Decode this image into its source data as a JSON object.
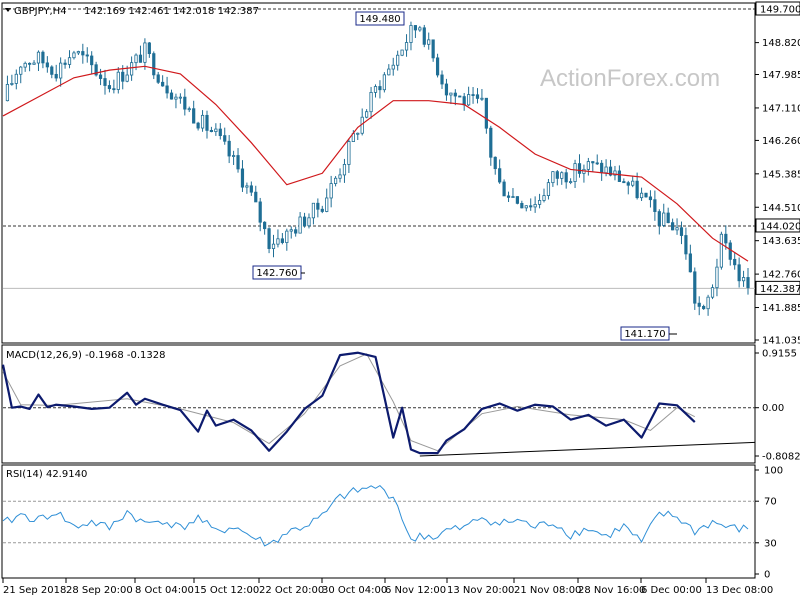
{
  "header": {
    "symbol": "GBPJPY,H4",
    "ohlc": "142.169 142.461 142.018 142.387"
  },
  "watermark": "ActionForex.com",
  "colors": {
    "candle": "#1f6e95",
    "ma": "#d0191c",
    "macd": "#0d1b6e",
    "signal": "#9a9a9a",
    "rsi": "#2f8fd6",
    "grid": "#999999",
    "trendline": "#000000"
  },
  "chart_data": [
    {
      "type": "candlestick",
      "panel": "price",
      "ylim": [
        141.035,
        149.7
      ],
      "y_ticks": [
        "149.700",
        "148.820",
        "147.985",
        "147.110",
        "146.260",
        "145.385",
        "144.510",
        "143.635",
        "142.760",
        "141.885",
        "141.035"
      ],
      "current_price": "142.387",
      "horizontal_lines": [
        {
          "value": 149.7,
          "label": "149.700"
        },
        {
          "value": 144.02,
          "label": "144.020"
        }
      ],
      "annotations": [
        {
          "text": "149.480",
          "value": 149.48
        },
        {
          "text": "142.760",
          "value": 142.76
        },
        {
          "text": "141.170",
          "value": 141.17
        }
      ],
      "x_ticks": [
        "21 Sep 2018",
        "28 Sep 20:00",
        "8 Oct 04:00",
        "15 Oct 12:00",
        "22 Oct 20:00",
        "30 Oct 04:00",
        "6 Nov 12:00",
        "13 Nov 20:00",
        "21 Nov 08:00",
        "28 Nov 16:00",
        "6 Dec 00:00",
        "13 Dec 08:00"
      ],
      "close_path": [
        [
          0,
          147.3
        ],
        [
          4,
          148.3
        ],
        [
          8,
          148.4
        ],
        [
          12,
          148.1
        ],
        [
          16,
          148.6
        ],
        [
          20,
          148.2
        ],
        [
          24,
          147.7
        ],
        [
          28,
          148.1
        ],
        [
          32,
          148.6
        ],
        [
          36,
          147.8
        ],
        [
          40,
          147.3
        ],
        [
          44,
          146.8
        ],
        [
          48,
          146.4
        ],
        [
          52,
          145.7
        ],
        [
          56,
          144.8
        ],
        [
          60,
          143.6
        ],
        [
          64,
          143.8
        ],
        [
          68,
          144.2
        ],
        [
          72,
          144.6
        ],
        [
          76,
          145.5
        ],
        [
          80,
          146.6
        ],
        [
          84,
          147.6
        ],
        [
          88,
          148.3
        ],
        [
          92,
          149.1
        ],
        [
          94,
          149.3
        ],
        [
          96,
          148.7
        ],
        [
          100,
          147.6
        ],
        [
          104,
          147.3
        ],
        [
          108,
          147.2
        ],
        [
          110,
          145.9
        ],
        [
          112,
          145.1
        ],
        [
          116,
          144.7
        ],
        [
          120,
          144.6
        ],
        [
          124,
          145.3
        ],
        [
          128,
          145.4
        ],
        [
          132,
          145.6
        ],
        [
          136,
          145.5
        ],
        [
          140,
          145.2
        ],
        [
          144,
          144.8
        ],
        [
          148,
          144.2
        ],
        [
          152,
          144.0
        ],
        [
          154,
          143.4
        ],
        [
          156,
          142.1
        ],
        [
          158,
          141.7
        ],
        [
          160,
          142.5
        ],
        [
          162,
          143.6
        ],
        [
          164,
          143.3
        ],
        [
          166,
          142.7
        ],
        [
          168,
          142.387
        ]
      ],
      "ma_path": [
        [
          0,
          146.9
        ],
        [
          8,
          147.4
        ],
        [
          16,
          147.9
        ],
        [
          24,
          148.1
        ],
        [
          32,
          148.2
        ],
        [
          40,
          148.0
        ],
        [
          48,
          147.2
        ],
        [
          56,
          146.2
        ],
        [
          64,
          145.1
        ],
        [
          72,
          145.4
        ],
        [
          80,
          146.6
        ],
        [
          88,
          147.3
        ],
        [
          96,
          147.3
        ],
        [
          104,
          147.2
        ],
        [
          112,
          146.6
        ],
        [
          120,
          145.9
        ],
        [
          128,
          145.5
        ],
        [
          136,
          145.4
        ],
        [
          144,
          145.3
        ],
        [
          152,
          144.6
        ],
        [
          160,
          143.7
        ],
        [
          168,
          143.1
        ]
      ]
    },
    {
      "type": "line",
      "panel": "macd",
      "title": "MACD(12,26,9) -0.1968 -0.1328",
      "ylim": [
        -0.8082,
        0.9155
      ],
      "y_ticks": [
        "0.9155",
        "0.00",
        "-0.8082"
      ],
      "series": [
        {
          "name": "MACD",
          "values": [
            [
              0,
              0.72
            ],
            [
              2,
              0.0
            ],
            [
              4,
              0.02
            ],
            [
              6,
              -0.02
            ],
            [
              8,
              0.22
            ],
            [
              10,
              0.01
            ],
            [
              12,
              0.05
            ],
            [
              16,
              0.02
            ],
            [
              20,
              -0.02
            ],
            [
              24,
              0.0
            ],
            [
              28,
              0.25
            ],
            [
              30,
              0.05
            ],
            [
              32,
              0.15
            ],
            [
              36,
              0.05
            ],
            [
              40,
              -0.04
            ],
            [
              44,
              -0.4
            ],
            [
              46,
              -0.05
            ],
            [
              48,
              -0.3
            ],
            [
              52,
              -0.2
            ],
            [
              56,
              -0.38
            ],
            [
              60,
              -0.72
            ],
            [
              64,
              -0.4
            ],
            [
              68,
              -0.02
            ],
            [
              72,
              0.2
            ],
            [
              76,
              0.88
            ],
            [
              80,
              0.92
            ],
            [
              84,
              0.85
            ],
            [
              86,
              0.18
            ],
            [
              88,
              -0.5
            ],
            [
              90,
              0.0
            ],
            [
              92,
              -0.7
            ],
            [
              94,
              -0.76
            ],
            [
              98,
              -0.76
            ],
            [
              100,
              -0.55
            ],
            [
              104,
              -0.36
            ],
            [
              108,
              -0.02
            ],
            [
              112,
              0.07
            ],
            [
              116,
              -0.05
            ],
            [
              120,
              0.05
            ],
            [
              124,
              0.02
            ],
            [
              128,
              -0.2
            ],
            [
              132,
              -0.12
            ],
            [
              136,
              -0.3
            ],
            [
              140,
              -0.2
            ],
            [
              144,
              -0.5
            ],
            [
              148,
              0.07
            ],
            [
              152,
              0.04
            ],
            [
              156,
              -0.24
            ]
          ]
        },
        {
          "name": "Signal",
          "values": [
            [
              0,
              0.6
            ],
            [
              4,
              0.05
            ],
            [
              12,
              0.04
            ],
            [
              28,
              0.15
            ],
            [
              40,
              -0.02
            ],
            [
              52,
              -0.25
            ],
            [
              60,
              -0.6
            ],
            [
              68,
              -0.1
            ],
            [
              76,
              0.7
            ],
            [
              82,
              0.9
            ],
            [
              88,
              0.1
            ],
            [
              92,
              -0.55
            ],
            [
              98,
              -0.72
            ],
            [
              108,
              -0.1
            ],
            [
              116,
              0.02
            ],
            [
              128,
              -0.12
            ],
            [
              140,
              -0.2
            ],
            [
              146,
              -0.38
            ],
            [
              152,
              0.0
            ],
            [
              156,
              -0.15
            ]
          ]
        }
      ],
      "trendline": {
        "from": [
          94,
          -0.8082
        ],
        "to": [
          168,
          -0.58
        ]
      }
    },
    {
      "type": "line",
      "panel": "rsi",
      "title": "RSI(14) 42.9140",
      "ylim": [
        0,
        100
      ],
      "y_ticks": [
        "100",
        "70",
        "30",
        "0"
      ],
      "reference_levels": [
        70,
        30
      ],
      "series": [
        {
          "name": "RSI",
          "values": [
            [
              0,
              48
            ],
            [
              4,
              57
            ],
            [
              8,
              52
            ],
            [
              12,
              60
            ],
            [
              16,
              45
            ],
            [
              20,
              50
            ],
            [
              24,
              44
            ],
            [
              28,
              60
            ],
            [
              32,
              48
            ],
            [
              36,
              52
            ],
            [
              40,
              44
            ],
            [
              44,
              54
            ],
            [
              48,
              40
            ],
            [
              52,
              46
            ],
            [
              56,
              36
            ],
            [
              60,
              28
            ],
            [
              64,
              40
            ],
            [
              68,
              46
            ],
            [
              72,
              55
            ],
            [
              76,
              74
            ],
            [
              80,
              80
            ],
            [
              84,
              84
            ],
            [
              88,
              75
            ],
            [
              90,
              55
            ],
            [
              92,
              30
            ],
            [
              94,
              38
            ],
            [
              98,
              35
            ],
            [
              100,
              42
            ],
            [
              104,
              44
            ],
            [
              108,
              55
            ],
            [
              112,
              48
            ],
            [
              116,
              52
            ],
            [
              120,
              45
            ],
            [
              124,
              50
            ],
            [
              128,
              38
            ],
            [
              132,
              44
            ],
            [
              136,
              36
            ],
            [
              140,
              46
            ],
            [
              144,
              30
            ],
            [
              148,
              58
            ],
            [
              152,
              55
            ],
            [
              156,
              41
            ],
            [
              160,
              50
            ],
            [
              164,
              44
            ],
            [
              168,
              43
            ]
          ]
        }
      ]
    }
  ]
}
